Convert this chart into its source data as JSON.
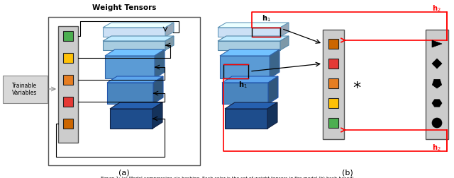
{
  "title": "Weight Tensors",
  "label_a": "(a)",
  "label_b": "(b)",
  "colors": {
    "green": "#4caf50",
    "yellow": "#ffc107",
    "orange": "#e67e22",
    "red": "#e53935",
    "dark_orange": "#cc6600",
    "blue_lightest": "#d0e8f8",
    "blue_light": "#a8cce8",
    "blue_mid": "#5b9bd5",
    "blue_dark": "#2e5f99",
    "gray_box": "#c8c8c8",
    "black": "#000000",
    "white": "#ffffff",
    "arrow_red": "#ff0000",
    "edge_dark": "#333333"
  }
}
